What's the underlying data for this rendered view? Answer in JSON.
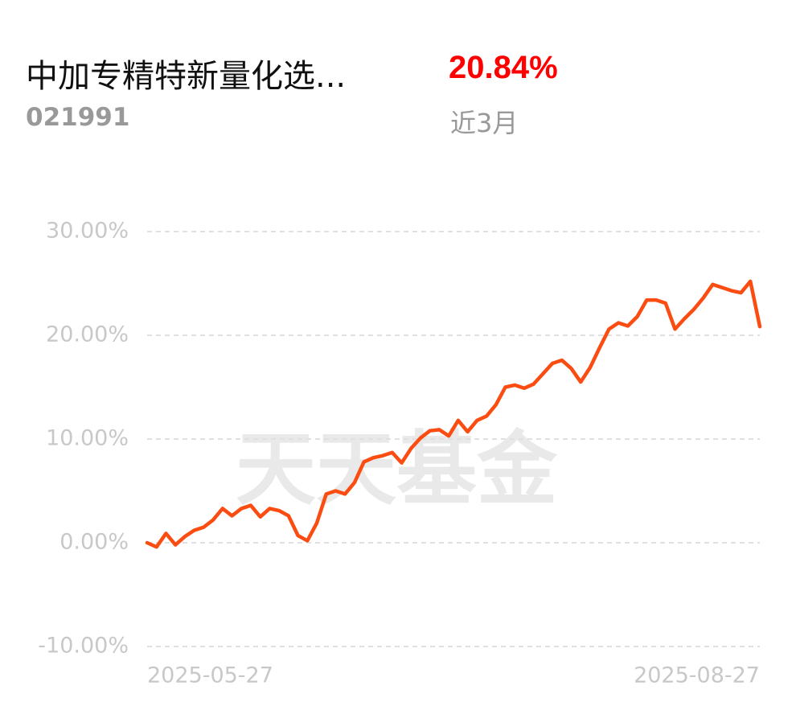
{
  "header": {
    "title": "中加专精特新量化选...",
    "code": "021991",
    "return_value": "20.84%",
    "period": "近3月"
  },
  "watermark": "天天基金",
  "chart_data": {
    "type": "line",
    "color": "#fb4c12",
    "categories": [
      "2025-05-27",
      null,
      null,
      null,
      null,
      null,
      null,
      null,
      null,
      null,
      null,
      null,
      null,
      null,
      null,
      null,
      null,
      null,
      null,
      null,
      null,
      null,
      null,
      null,
      null,
      null,
      null,
      null,
      null,
      null,
      null,
      null,
      null,
      null,
      null,
      null,
      null,
      null,
      null,
      null,
      null,
      null,
      null,
      null,
      null,
      null,
      null,
      null,
      null,
      null,
      null,
      null,
      null,
      null,
      null,
      null,
      null,
      null,
      null,
      null,
      null,
      null,
      null,
      null,
      null,
      "2025-08-27"
    ],
    "values": [
      0,
      -0.4,
      0.9,
      -0.2,
      0.6,
      1.2,
      1.5,
      2.2,
      3.3,
      2.6,
      3.3,
      3.6,
      2.5,
      3.3,
      3.1,
      2.6,
      0.7,
      0.2,
      1.9,
      4.7,
      5.0,
      4.7,
      5.8,
      7.8,
      8.2,
      8.4,
      8.7,
      7.7,
      9.1,
      10.1,
      10.8,
      10.9,
      10.3,
      11.8,
      10.7,
      11.8,
      12.2,
      13.3,
      15.0,
      15.2,
      14.9,
      15.3,
      16.3,
      17.3,
      17.6,
      16.8,
      15.5,
      16.9,
      18.8,
      20.6,
      21.2,
      20.9,
      21.8,
      23.4,
      23.4,
      23.1,
      20.6,
      21.6,
      22.5,
      23.6,
      24.9,
      24.6,
      24.3,
      24.1,
      25.2,
      20.84
    ],
    "ylim": [
      -10,
      30
    ],
    "yticks": [
      {
        "value": -10,
        "label": "-10.00%"
      },
      {
        "value": 0,
        "label": "0.00%"
      },
      {
        "value": 10,
        "label": "10.00%"
      },
      {
        "value": 20,
        "label": "20.00%"
      },
      {
        "value": 30,
        "label": "30.00%"
      }
    ],
    "grid": true
  }
}
